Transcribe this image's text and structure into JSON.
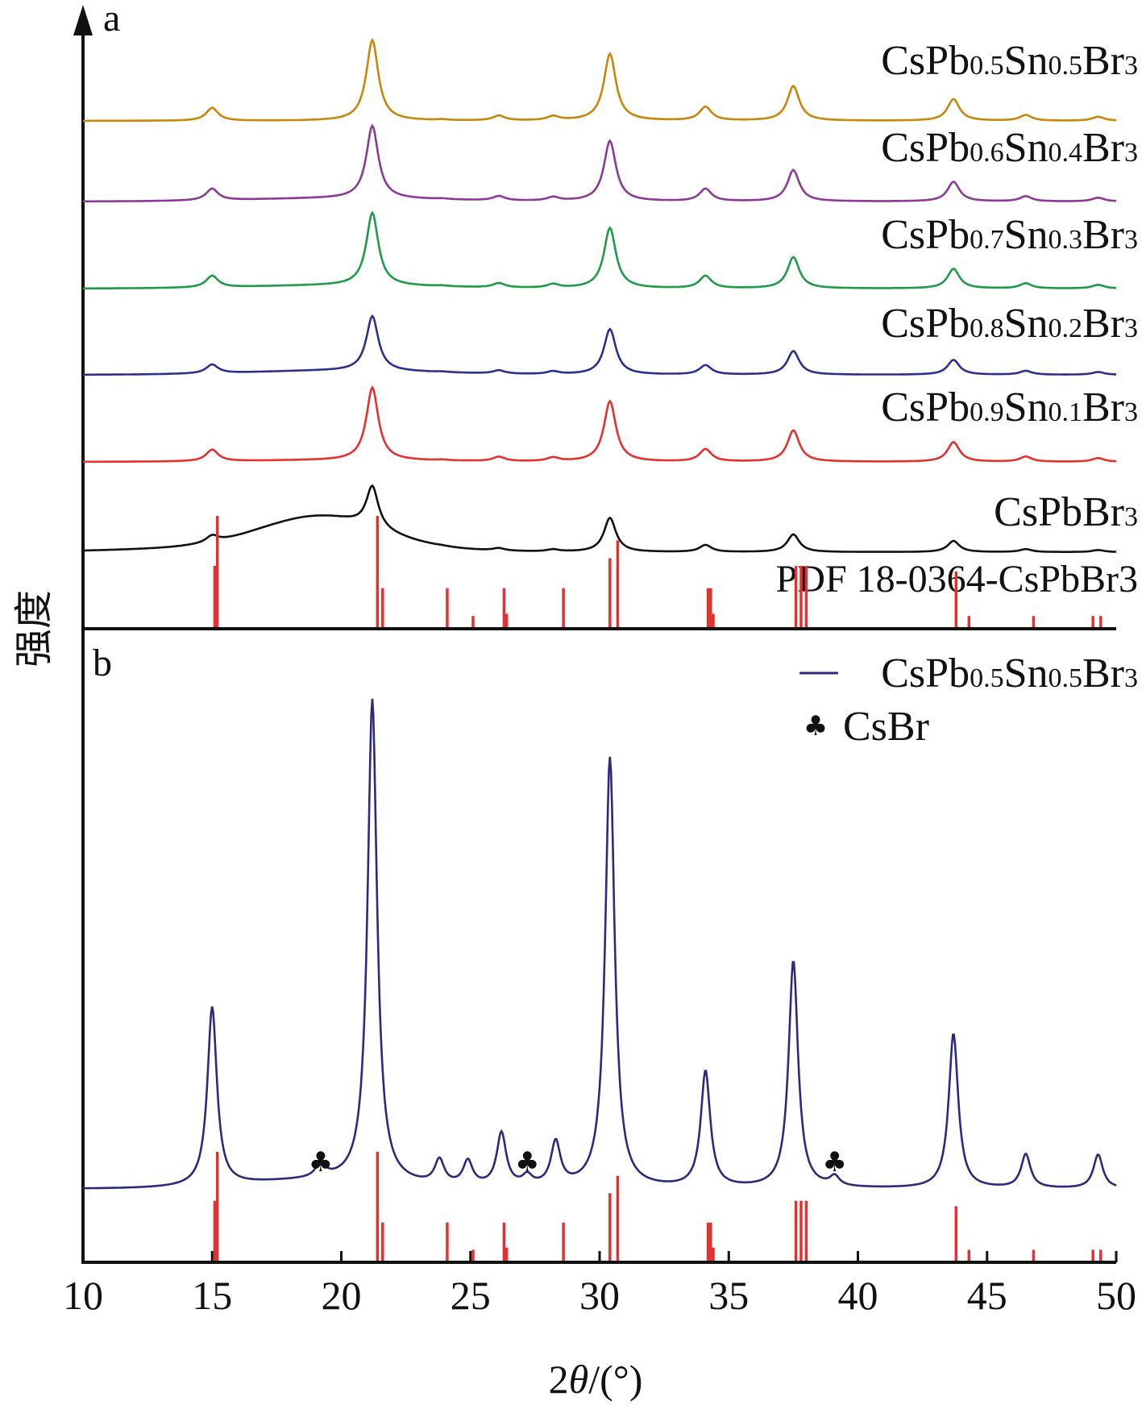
{
  "chart_data": {
    "type": "line",
    "panel_a": {
      "label": "a",
      "series": [
        {
          "name": "CsPb0.5Sn0.5Br3",
          "color": "#c8860a",
          "baseline": 0.0,
          "peak_scale": 1.0
        },
        {
          "name": "CsPb0.6Sn0.4Br3",
          "color": "#8b3a96",
          "baseline": 0.02,
          "peak_scale": 0.95
        },
        {
          "name": "CsPb0.7Sn0.3Br3",
          "color": "#1f9a48",
          "baseline": 0.02,
          "peak_scale": 0.95
        },
        {
          "name": "CsPb0.8Sn0.2Br3",
          "color": "#2e2e8f",
          "baseline": 0.03,
          "peak_scale": 0.8
        },
        {
          "name": "CsPb0.9Sn0.1Br3",
          "color": "#e3312f",
          "baseline": 0.01,
          "peak_scale": 0.95
        },
        {
          "name": "CsPbBr3",
          "color": "#111111",
          "baseline": 0.03,
          "peak_scale": 0.6,
          "amorphous": true
        }
      ],
      "reference_label": "PDF 18-0364-CsPbBr3"
    },
    "panel_b": {
      "label": "b",
      "legend": [
        {
          "name": "CsPb0.5Sn0.5Br3",
          "color": "#2d2a7e",
          "marker": "line"
        },
        {
          "name": "CsBr",
          "color": "#111111",
          "marker": "club"
        }
      ],
      "series_peaks": [
        {
          "x": 15.0,
          "h": 0.37
        },
        {
          "x": 19.2,
          "h": 0.03
        },
        {
          "x": 21.2,
          "h": 1.0
        },
        {
          "x": 23.8,
          "h": 0.05
        },
        {
          "x": 24.9,
          "h": 0.05
        },
        {
          "x": 26.2,
          "h": 0.11
        },
        {
          "x": 27.2,
          "h": 0.02
        },
        {
          "x": 28.3,
          "h": 0.09
        },
        {
          "x": 30.4,
          "h": 0.89
        },
        {
          "x": 34.1,
          "h": 0.24
        },
        {
          "x": 37.5,
          "h": 0.47
        },
        {
          "x": 39.1,
          "h": 0.02
        },
        {
          "x": 43.7,
          "h": 0.32
        },
        {
          "x": 46.5,
          "h": 0.07
        },
        {
          "x": 49.3,
          "h": 0.07
        }
      ],
      "csbr_markers_x": [
        19.2,
        27.2,
        39.1
      ]
    },
    "reference_sticks": [
      {
        "x": 15.1,
        "h": 0.55
      },
      {
        "x": 15.2,
        "h": 1.0
      },
      {
        "x": 21.4,
        "h": 1.0
      },
      {
        "x": 21.6,
        "h": 0.35
      },
      {
        "x": 24.1,
        "h": 0.35
      },
      {
        "x": 25.1,
        "h": 0.1
      },
      {
        "x": 26.3,
        "h": 0.35
      },
      {
        "x": 26.4,
        "h": 0.12
      },
      {
        "x": 28.6,
        "h": 0.35
      },
      {
        "x": 30.4,
        "h": 0.62
      },
      {
        "x": 30.7,
        "h": 0.78
      },
      {
        "x": 34.2,
        "h": 0.35
      },
      {
        "x": 34.3,
        "h": 0.35
      },
      {
        "x": 34.4,
        "h": 0.12
      },
      {
        "x": 37.6,
        "h": 0.55
      },
      {
        "x": 37.8,
        "h": 0.55
      },
      {
        "x": 38.0,
        "h": 0.55
      },
      {
        "x": 43.8,
        "h": 0.5
      },
      {
        "x": 44.3,
        "h": 0.1
      },
      {
        "x": 46.8,
        "h": 0.1
      },
      {
        "x": 49.1,
        "h": 0.1
      },
      {
        "x": 49.4,
        "h": 0.1
      }
    ],
    "x_axis": {
      "label": "2θ/(°)",
      "min": 10,
      "max": 50,
      "ticks": [
        10,
        15,
        20,
        25,
        30,
        35,
        40,
        45,
        50
      ]
    },
    "y_axis": {
      "label": "强度"
    },
    "grid": false
  },
  "labels": {
    "panel_a": "a",
    "panel_b": "b",
    "ylabel": "强度",
    "xlabel_prefix": "2",
    "xlabel_theta": "θ",
    "xlabel_suffix": "/(°)",
    "ref": "PDF 18-0364-CsPbBr3",
    "csbr": "CsBr"
  }
}
